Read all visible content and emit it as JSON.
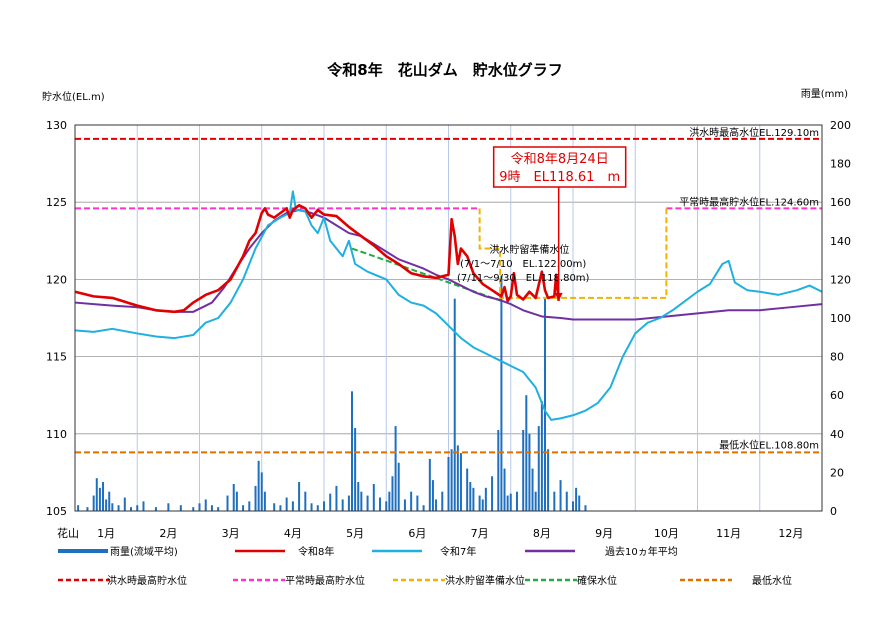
{
  "chart_data": {
    "type": "line",
    "title": "令和8年　花山ダム　貯水位グラフ",
    "left_axis": {
      "label": "貯水位(EL.m)",
      "min": 105,
      "max": 130,
      "ticks": [
        "105",
        "110",
        "115",
        "120",
        "125",
        "130"
      ]
    },
    "right_axis": {
      "label": "雨量(mm)",
      "min": 0,
      "max": 200,
      "ticks": [
        "0",
        "20",
        "40",
        "60",
        "80",
        "100",
        "120",
        "140",
        "160",
        "180",
        "200"
      ]
    },
    "x_axis": {
      "corner_label": "花山",
      "months": [
        "1月",
        "2月",
        "3月",
        "4月",
        "5月",
        "6月",
        "7月",
        "8月",
        "9月",
        "10月",
        "11月",
        "12月"
      ]
    },
    "reference_lines": {
      "flood_max": {
        "value": 129.1,
        "label": "洪水時最高水位EL.129.10m",
        "color": "#e00000"
      },
      "normal_max": {
        "value": 124.6,
        "label": "平常時最高貯水位EL.124.60m",
        "color": "#ff33cc"
      },
      "minimum": {
        "value": 108.8,
        "label": "最低水位EL.108.80m",
        "color": "#e07000"
      }
    },
    "flood_prep": {
      "label_title": "洪水貯留準備水位",
      "label_line1": "(7/1～7/10　EL.122.00m)",
      "label_line2": "(7/11～9/30　EL.118.80m)",
      "color": "#f0b400",
      "points": [
        [
          6.5,
          124.6
        ],
        [
          6.5,
          122.0
        ],
        [
          6.83,
          122.0
        ],
        [
          6.83,
          118.8
        ],
        [
          9.5,
          118.8
        ],
        [
          9.5,
          124.6
        ],
        [
          12.0,
          124.6
        ]
      ]
    },
    "assured_level": {
      "color": "#22aa44",
      "points": [
        [
          4.45,
          122.0
        ],
        [
          6.85,
          118.6
        ]
      ]
    },
    "callout": {
      "line1": "令和8年8月24日",
      "line2": "9時　EL118.61　m",
      "month_pos": 7.77,
      "value": 118.61
    },
    "series": [
      {
        "name": "令和8年",
        "color": "#e00000",
        "points": [
          [
            0,
            119.2
          ],
          [
            0.3,
            118.9
          ],
          [
            0.6,
            118.8
          ],
          [
            1.0,
            118.3
          ],
          [
            1.3,
            118.0
          ],
          [
            1.6,
            117.9
          ],
          [
            1.75,
            118.0
          ],
          [
            1.9,
            118.5
          ],
          [
            2.1,
            119.0
          ],
          [
            2.3,
            119.3
          ],
          [
            2.5,
            120.0
          ],
          [
            2.7,
            121.5
          ],
          [
            2.8,
            122.5
          ],
          [
            2.9,
            123.0
          ],
          [
            3.0,
            124.3
          ],
          [
            3.05,
            124.6
          ],
          [
            3.1,
            124.2
          ],
          [
            3.2,
            124.0
          ],
          [
            3.3,
            124.3
          ],
          [
            3.4,
            124.6
          ],
          [
            3.45,
            124.0
          ],
          [
            3.5,
            124.5
          ],
          [
            3.6,
            124.8
          ],
          [
            3.7,
            124.6
          ],
          [
            3.8,
            124.0
          ],
          [
            3.9,
            124.5
          ],
          [
            4.0,
            124.2
          ],
          [
            4.2,
            124.1
          ],
          [
            4.4,
            123.4
          ],
          [
            4.6,
            122.8
          ],
          [
            4.8,
            122.2
          ],
          [
            5.0,
            121.5
          ],
          [
            5.2,
            121.0
          ],
          [
            5.4,
            120.4
          ],
          [
            5.6,
            120.2
          ],
          [
            5.8,
            120.1
          ],
          [
            6.0,
            120.3
          ],
          [
            6.05,
            123.9
          ],
          [
            6.1,
            122.8
          ],
          [
            6.15,
            121.0
          ],
          [
            6.2,
            122.0
          ],
          [
            6.3,
            121.5
          ],
          [
            6.4,
            120.4
          ],
          [
            6.55,
            119.7
          ],
          [
            6.7,
            119.3
          ],
          [
            6.85,
            118.9
          ],
          [
            6.9,
            119.5
          ],
          [
            6.95,
            118.6
          ],
          [
            7.0,
            118.9
          ],
          [
            7.05,
            120.4
          ],
          [
            7.1,
            119.0
          ],
          [
            7.2,
            118.7
          ],
          [
            7.3,
            119.2
          ],
          [
            7.4,
            118.8
          ],
          [
            7.5,
            120.5
          ],
          [
            7.55,
            119.3
          ],
          [
            7.6,
            118.8
          ],
          [
            7.7,
            118.9
          ],
          [
            7.73,
            120.3
          ],
          [
            7.77,
            118.61
          ]
        ]
      },
      {
        "name": "令和7年",
        "color": "#20b0e0",
        "points": [
          [
            0,
            116.7
          ],
          [
            0.3,
            116.6
          ],
          [
            0.6,
            116.8
          ],
          [
            1.0,
            116.5
          ],
          [
            1.3,
            116.3
          ],
          [
            1.6,
            116.2
          ],
          [
            1.9,
            116.4
          ],
          [
            2.1,
            117.2
          ],
          [
            2.3,
            117.5
          ],
          [
            2.5,
            118.5
          ],
          [
            2.7,
            120.0
          ],
          [
            2.9,
            122.0
          ],
          [
            3.1,
            123.5
          ],
          [
            3.3,
            124.0
          ],
          [
            3.45,
            124.3
          ],
          [
            3.5,
            125.7
          ],
          [
            3.55,
            124.5
          ],
          [
            3.7,
            124.4
          ],
          [
            3.8,
            123.5
          ],
          [
            3.9,
            123.0
          ],
          [
            4.0,
            124.0
          ],
          [
            4.1,
            122.5
          ],
          [
            4.3,
            121.5
          ],
          [
            4.4,
            122.5
          ],
          [
            4.5,
            121.0
          ],
          [
            4.7,
            120.5
          ],
          [
            5.0,
            120.0
          ],
          [
            5.2,
            119.0
          ],
          [
            5.4,
            118.5
          ],
          [
            5.6,
            118.3
          ],
          [
            5.8,
            117.8
          ],
          [
            6.0,
            117.0
          ],
          [
            6.2,
            116.2
          ],
          [
            6.4,
            115.6
          ],
          [
            6.6,
            115.2
          ],
          [
            6.8,
            114.8
          ],
          [
            7.0,
            114.4
          ],
          [
            7.2,
            114.0
          ],
          [
            7.4,
            113.0
          ],
          [
            7.55,
            111.5
          ],
          [
            7.65,
            110.9
          ],
          [
            7.8,
            111.0
          ],
          [
            8.0,
            111.2
          ],
          [
            8.2,
            111.5
          ],
          [
            8.4,
            112.0
          ],
          [
            8.6,
            113.0
          ],
          [
            8.8,
            115.0
          ],
          [
            9.0,
            116.5
          ],
          [
            9.2,
            117.2
          ],
          [
            9.4,
            117.5
          ],
          [
            9.6,
            118.0
          ],
          [
            9.8,
            118.6
          ],
          [
            10.0,
            119.2
          ],
          [
            10.2,
            119.7
          ],
          [
            10.4,
            121.0
          ],
          [
            10.5,
            121.2
          ],
          [
            10.6,
            119.8
          ],
          [
            10.8,
            119.3
          ],
          [
            11.0,
            119.2
          ],
          [
            11.3,
            119.0
          ],
          [
            11.6,
            119.3
          ],
          [
            11.8,
            119.6
          ],
          [
            12.0,
            119.2
          ]
        ]
      },
      {
        "name": "過去10ヵ年平均",
        "color": "#7030a0",
        "points": [
          [
            0,
            118.5
          ],
          [
            0.3,
            118.4
          ],
          [
            0.6,
            118.3
          ],
          [
            1.0,
            118.2
          ],
          [
            1.3,
            118.0
          ],
          [
            1.6,
            117.9
          ],
          [
            1.9,
            117.9
          ],
          [
            2.2,
            118.5
          ],
          [
            2.4,
            119.5
          ],
          [
            2.6,
            120.8
          ],
          [
            2.8,
            122.0
          ],
          [
            3.0,
            123.0
          ],
          [
            3.2,
            123.8
          ],
          [
            3.4,
            124.3
          ],
          [
            3.6,
            124.5
          ],
          [
            3.8,
            124.3
          ],
          [
            4.0,
            124.0
          ],
          [
            4.2,
            123.5
          ],
          [
            4.4,
            123.0
          ],
          [
            4.6,
            122.8
          ],
          [
            4.8,
            122.3
          ],
          [
            5.0,
            121.8
          ],
          [
            5.2,
            121.3
          ],
          [
            5.4,
            121.0
          ],
          [
            5.6,
            120.7
          ],
          [
            5.8,
            120.3
          ],
          [
            6.0,
            120.0
          ],
          [
            6.2,
            119.6
          ],
          [
            6.4,
            119.2
          ],
          [
            6.6,
            118.9
          ],
          [
            6.8,
            118.7
          ],
          [
            7.0,
            118.4
          ],
          [
            7.2,
            118.0
          ],
          [
            7.5,
            117.6
          ],
          [
            7.8,
            117.5
          ],
          [
            8.0,
            117.4
          ],
          [
            8.5,
            117.4
          ],
          [
            9.0,
            117.4
          ],
          [
            9.5,
            117.6
          ],
          [
            10.0,
            117.8
          ],
          [
            10.5,
            118.0
          ],
          [
            11.0,
            118.0
          ],
          [
            11.5,
            118.2
          ],
          [
            12.0,
            118.4
          ]
        ]
      }
    ],
    "rainfall": {
      "name": "雨量(流域平均)",
      "color": "#1f6fbf",
      "points": [
        [
          0.05,
          3
        ],
        [
          0.2,
          2
        ],
        [
          0.3,
          8
        ],
        [
          0.35,
          17
        ],
        [
          0.4,
          12
        ],
        [
          0.45,
          15
        ],
        [
          0.5,
          6
        ],
        [
          0.55,
          10
        ],
        [
          0.6,
          4
        ],
        [
          0.7,
          3
        ],
        [
          0.8,
          7
        ],
        [
          0.9,
          2
        ],
        [
          1.0,
          3
        ],
        [
          1.1,
          5
        ],
        [
          1.3,
          2
        ],
        [
          1.5,
          4
        ],
        [
          1.7,
          3
        ],
        [
          1.9,
          2
        ],
        [
          2.0,
          4
        ],
        [
          2.1,
          6
        ],
        [
          2.2,
          3
        ],
        [
          2.3,
          2
        ],
        [
          2.45,
          8
        ],
        [
          2.55,
          14
        ],
        [
          2.6,
          10
        ],
        [
          2.7,
          3
        ],
        [
          2.8,
          5
        ],
        [
          2.9,
          13
        ],
        [
          2.95,
          26
        ],
        [
          3.0,
          20
        ],
        [
          3.05,
          10
        ],
        [
          3.2,
          4
        ],
        [
          3.3,
          3
        ],
        [
          3.4,
          7
        ],
        [
          3.5,
          5
        ],
        [
          3.6,
          15
        ],
        [
          3.7,
          10
        ],
        [
          3.8,
          4
        ],
        [
          3.9,
          3
        ],
        [
          4.0,
          5
        ],
        [
          4.1,
          9
        ],
        [
          4.2,
          13
        ],
        [
          4.3,
          6
        ],
        [
          4.4,
          8
        ],
        [
          4.45,
          62
        ],
        [
          4.5,
          43
        ],
        [
          4.55,
          15
        ],
        [
          4.6,
          10
        ],
        [
          4.7,
          8
        ],
        [
          4.8,
          14
        ],
        [
          4.9,
          7
        ],
        [
          5.0,
          5
        ],
        [
          5.05,
          10
        ],
        [
          5.1,
          18
        ],
        [
          5.15,
          44
        ],
        [
          5.2,
          25
        ],
        [
          5.3,
          6
        ],
        [
          5.4,
          10
        ],
        [
          5.5,
          8
        ],
        [
          5.6,
          3
        ],
        [
          5.7,
          27
        ],
        [
          5.75,
          16
        ],
        [
          5.8,
          6
        ],
        [
          5.9,
          10
        ],
        [
          6.0,
          28
        ],
        [
          6.05,
          32
        ],
        [
          6.1,
          110
        ],
        [
          6.15,
          34
        ],
        [
          6.2,
          30
        ],
        [
          6.3,
          22
        ],
        [
          6.35,
          15
        ],
        [
          6.4,
          12
        ],
        [
          6.5,
          8
        ],
        [
          6.55,
          6
        ],
        [
          6.6,
          12
        ],
        [
          6.7,
          18
        ],
        [
          6.8,
          42
        ],
        [
          6.85,
          122
        ],
        [
          6.9,
          22
        ],
        [
          6.95,
          8
        ],
        [
          7.0,
          9
        ],
        [
          7.1,
          10
        ],
        [
          7.2,
          42
        ],
        [
          7.25,
          60
        ],
        [
          7.3,
          40
        ],
        [
          7.35,
          22
        ],
        [
          7.4,
          10
        ],
        [
          7.45,
          44
        ],
        [
          7.5,
          57
        ],
        [
          7.55,
          110
        ],
        [
          7.6,
          32
        ],
        [
          7.7,
          10
        ],
        [
          7.8,
          16
        ],
        [
          7.9,
          10
        ],
        [
          8.0,
          5
        ],
        [
          8.05,
          12
        ],
        [
          8.1,
          8
        ],
        [
          8.2,
          3
        ]
      ]
    },
    "legend": [
      {
        "label": "雨量(流域平均)",
        "color": "#1f6fbf",
        "style": "solid-thick"
      },
      {
        "label": "令和8年",
        "color": "#e00000",
        "style": "solid"
      },
      {
        "label": "令和7年",
        "color": "#20b0e0",
        "style": "solid"
      },
      {
        "label": "過去10ヵ年平均",
        "color": "#7030a0",
        "style": "solid"
      },
      {
        "label": "洪水時最高貯水位",
        "color": "#e00000",
        "style": "dashed"
      },
      {
        "label": "平常時最高貯水位",
        "color": "#ff33cc",
        "style": "dashed"
      },
      {
        "label": "洪水貯留準備水位",
        "color": "#f0b400",
        "style": "dashed"
      },
      {
        "label": "確保水位",
        "color": "#22aa44",
        "style": "dashed"
      },
      {
        "label": "最低水位",
        "color": "#e07000",
        "style": "dashed"
      }
    ]
  }
}
